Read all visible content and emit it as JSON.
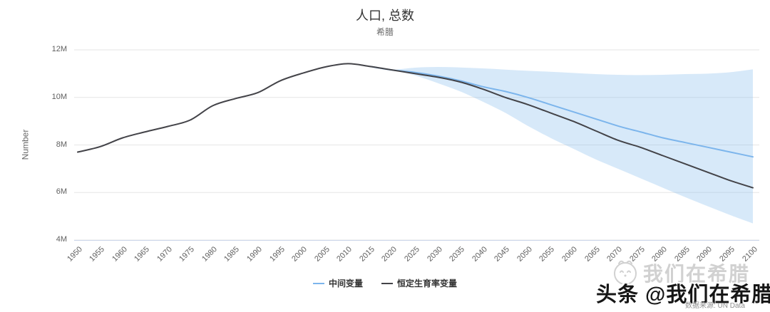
{
  "title": "人口, 总数",
  "subtitle": "希腊",
  "yAxis": {
    "title": "Number",
    "tick_labels": [
      "12M",
      "10M",
      "8M",
      "6M",
      "4M"
    ],
    "tick_values_millions": [
      12,
      10,
      8,
      6,
      4
    ]
  },
  "xAxis": {
    "tick_labels": [
      "1950",
      "1955",
      "1960",
      "1965",
      "1970",
      "1975",
      "1980",
      "1985",
      "1990",
      "1995",
      "2000",
      "2005",
      "2010",
      "2015",
      "2020",
      "2025",
      "2030",
      "2035",
      "2040",
      "2045",
      "2050",
      "2055",
      "2060",
      "2065",
      "2070",
      "2075",
      "2080",
      "2085",
      "2090",
      "2095",
      "2100"
    ]
  },
  "legend": [
    {
      "label": "中间变量",
      "color": "#7cb5ec"
    },
    {
      "label": "恒定生育率变量",
      "color": "#434348"
    }
  ],
  "watermark": {
    "logo_icon": "smiley-mascot-icon",
    "faint_text": "我们在希腊",
    "bold_text": "头条 @我们在希腊",
    "source_text": "数据来源: UN Data"
  },
  "colors": {
    "medium_variant_line": "#7cb5ec",
    "constant_fertility_line": "#434348",
    "confidence_band_fill": "rgba(124,181,236,0.30)",
    "gridline": "#e6e6e6",
    "axis_line": "#ccd6eb",
    "title_text": "#333333",
    "axis_text": "#666666"
  },
  "chart_data": {
    "type": "line",
    "title": "人口, 总数",
    "subtitle": "希腊",
    "xlabel": "",
    "ylabel": "Number",
    "x_range": [
      1950,
      2100
    ],
    "ylim_millions": [
      4,
      12
    ],
    "grid": "horizontal-only",
    "legend_position": "bottom-center",
    "x": [
      1950,
      1955,
      1960,
      1965,
      1970,
      1975,
      1980,
      1985,
      1990,
      1995,
      2000,
      2005,
      2010,
      2015,
      2020,
      2025,
      2030,
      2035,
      2040,
      2045,
      2050,
      2055,
      2060,
      2065,
      2070,
      2075,
      2080,
      2085,
      2090,
      2095,
      2100
    ],
    "series": [
      {
        "name": "恒定生育率变量",
        "type": "line",
        "color": "#434348",
        "start_year": 1950,
        "values_millions": [
          7.7,
          7.93,
          8.3,
          8.55,
          8.78,
          9.05,
          9.65,
          9.95,
          10.2,
          10.7,
          11.02,
          11.28,
          11.42,
          11.3,
          11.15,
          11.0,
          10.85,
          10.65,
          10.35,
          10.0,
          9.7,
          9.35,
          9.0,
          8.6,
          8.2,
          7.9,
          7.55,
          7.2,
          6.85,
          6.5,
          6.2
        ]
      },
      {
        "name": "中间变量",
        "type": "line",
        "color": "#7cb5ec",
        "start_year": 2015,
        "values_millions": [
          11.3,
          11.15,
          11.05,
          10.9,
          10.7,
          10.45,
          10.25,
          10.0,
          9.7,
          9.4,
          9.1,
          8.8,
          8.55,
          8.3,
          8.1,
          7.9,
          7.7,
          7.5
        ]
      },
      {
        "name": "中间变量置信区间",
        "type": "arearange",
        "color": "#7cb5ec",
        "opacity": 0.3,
        "start_year": 2020,
        "upper_millions": [
          11.15,
          11.25,
          11.28,
          11.26,
          11.22,
          11.17,
          11.12,
          11.08,
          11.03,
          10.98,
          10.95,
          10.94,
          10.95,
          10.98,
          11.0,
          11.06,
          11.18
        ],
        "lower_millions": [
          11.15,
          10.92,
          10.6,
          10.25,
          9.82,
          9.35,
          8.8,
          8.3,
          7.85,
          7.4,
          7.0,
          6.6,
          6.2,
          5.8,
          5.42,
          5.05,
          4.7
        ]
      }
    ]
  }
}
